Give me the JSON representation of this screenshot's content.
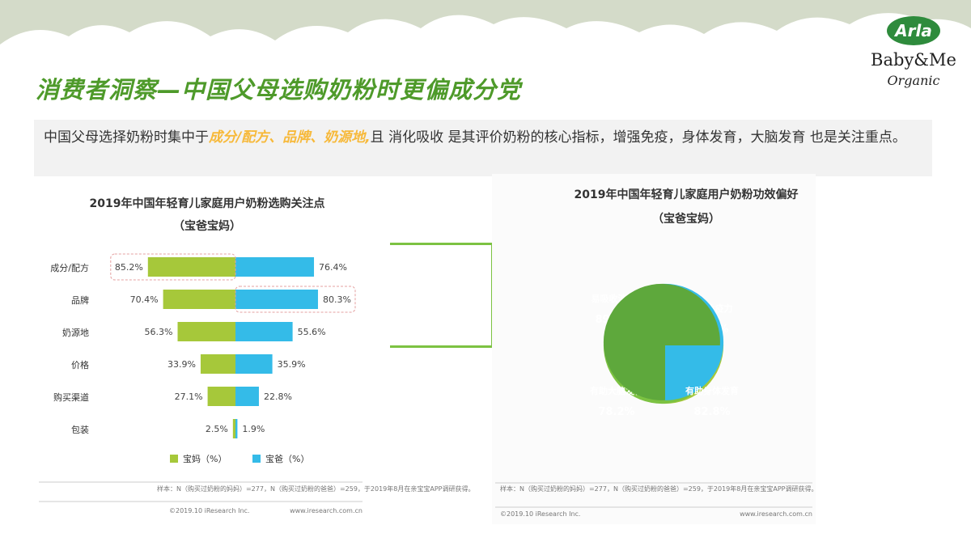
{
  "slide": {
    "title": "消费者洞察—中国父母选购奶粉时更偏成分党",
    "summary_pre": "中国父母选择奶粉时集中于",
    "summary_highlight": "成分/配方、品牌、奶源地,",
    "summary_post": "且 消化吸收 是其评价奶粉的核心指标，增强免疫，身体发育，大脑发育 也是关注重点。"
  },
  "logo": {
    "brand": "Arla",
    "line1": "Baby&Me",
    "line2": "Organic"
  },
  "colors": {
    "title_green": "#4e9a2a",
    "highlight": "#f7b93a",
    "mom": "#a6c83a",
    "dad": "#34bbe8",
    "bracket": "#7cc242"
  },
  "chart_data": [
    {
      "type": "bar",
      "title": "2019年中国年轻育儿家庭用户奶粉选购关注点",
      "subtitle": "（宝爸宝妈）",
      "categories": [
        "成分/配方",
        "品牌",
        "奶源地",
        "价格",
        "购买渠道",
        "包装"
      ],
      "series": [
        {
          "name": "宝妈（%）",
          "values": [
            85.2,
            70.4,
            56.3,
            33.9,
            27.1,
            2.5
          ],
          "color": "#a6c83a"
        },
        {
          "name": "宝爸（%）",
          "values": [
            76.4,
            80.3,
            55.6,
            35.9,
            22.8,
            1.9
          ],
          "color": "#34bbe8"
        }
      ],
      "value_labels_mom": [
        "85.2%",
        "70.4%",
        "56.3%",
        "33.9%",
        "27.1%",
        "2.5%"
      ],
      "value_labels_dad": [
        "76.4%",
        "80.3%",
        "55.6%",
        "35.9%",
        "22.8%",
        "1.9%"
      ],
      "legend_position": "bottom-left",
      "note": "样本：N（购买过奶粉的妈妈）=277，N（购买过奶粉的爸爸）=259，于2019年8月在亲宝宝APP调研获得。",
      "footer_left": "©2019.10 iResearch Inc.",
      "footer_right": "www.iresearch.com.cn"
    },
    {
      "type": "pie",
      "title": "2019年中国年轻育儿家庭用户奶粉功效偏好",
      "subtitle": "（宝爸宝妈）",
      "categories": [
        "易吸收消化",
        "增强免疫力",
        "有助大脑发育",
        "有助身体发育"
      ],
      "values": [
        89.9,
        84.1,
        78.2,
        82.8
      ],
      "value_labels": [
        "89.9%",
        "84.1%",
        "78.2%",
        "82.8%"
      ],
      "colors": [
        "#a6c83a",
        "#7cc242",
        "#34bbe8",
        "#5ea83c"
      ],
      "note": "样本：N（购买过奶粉的妈妈）=277，N（购买过奶粉的爸爸）=259，于2019年8月在亲宝宝APP调研获得。",
      "footer_left": "©2019.10 iResearch Inc.",
      "footer_right": "www.iresearch.com.cn"
    }
  ]
}
